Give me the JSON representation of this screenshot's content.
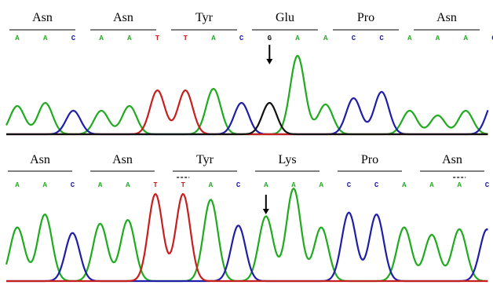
{
  "colors": {
    "A": "#1faa1f",
    "C": "#1e1ea8",
    "G": "#111111",
    "T": "#c81e1e",
    "text": "#000000",
    "background": "#ffffff"
  },
  "panels": [
    {
      "id": "top",
      "codons": [
        "Asn",
        "Asn",
        "Tyr",
        "Glu",
        "Pro",
        "Asn"
      ],
      "bases": [
        "A",
        "A",
        "C",
        "A",
        "A",
        "T",
        "T",
        "A",
        "C",
        "G",
        "A",
        "A",
        "C",
        "C",
        "A",
        "A",
        "A",
        "C"
      ],
      "mutation_codon_index": 3,
      "het_base_indices": [],
      "peaks": [
        {
          "base": "A",
          "height": 0.36
        },
        {
          "base": "A",
          "height": 0.4
        },
        {
          "base": "C",
          "height": 0.3
        },
        {
          "base": "A",
          "height": 0.3
        },
        {
          "base": "A",
          "height": 0.36
        },
        {
          "base": "T",
          "height": 0.56
        },
        {
          "base": "T",
          "height": 0.56
        },
        {
          "base": "A",
          "height": 0.58
        },
        {
          "base": "C",
          "height": 0.4
        },
        {
          "base": "G",
          "height": 0.4
        },
        {
          "base": "A",
          "height": 1.0
        },
        {
          "base": "A",
          "height": 0.38
        },
        {
          "base": "C",
          "height": 0.46
        },
        {
          "base": "C",
          "height": 0.54
        },
        {
          "base": "A",
          "height": 0.3
        },
        {
          "base": "A",
          "height": 0.24
        },
        {
          "base": "A",
          "height": 0.3
        },
        {
          "base": "C",
          "height": 0.42
        }
      ]
    },
    {
      "id": "bottom",
      "codons": [
        "Asn",
        "Asn",
        "Tyr",
        "Lys",
        "Pro",
        "Asn"
      ],
      "bases": [
        "A",
        "A",
        "C",
        "A",
        "A",
        "T",
        "T",
        "A",
        "C",
        "A",
        "A",
        "A",
        "C",
        "C",
        "A",
        "A",
        "A",
        "C"
      ],
      "mutation_codon_index": 3,
      "het_base_indices": [
        6,
        16
      ],
      "peaks": [
        {
          "base": "A",
          "height": 0.58
        },
        {
          "base": "A",
          "height": 0.72
        },
        {
          "base": "C",
          "height": 0.52
        },
        {
          "base": "A",
          "height": 0.62
        },
        {
          "base": "A",
          "height": 0.66
        },
        {
          "base": "T",
          "height": 0.94
        },
        {
          "base": "T",
          "height": 0.94
        },
        {
          "base": "A",
          "height": 0.88
        },
        {
          "base": "C",
          "height": 0.6
        },
        {
          "base": "A",
          "height": 0.7
        },
        {
          "base": "A",
          "height": 1.0
        },
        {
          "base": "A",
          "height": 0.58
        },
        {
          "base": "C",
          "height": 0.74
        },
        {
          "base": "C",
          "height": 0.72
        },
        {
          "base": "A",
          "height": 0.58
        },
        {
          "base": "A",
          "height": 0.5
        },
        {
          "base": "A",
          "height": 0.56
        },
        {
          "base": "C",
          "height": 0.56
        }
      ]
    }
  ]
}
